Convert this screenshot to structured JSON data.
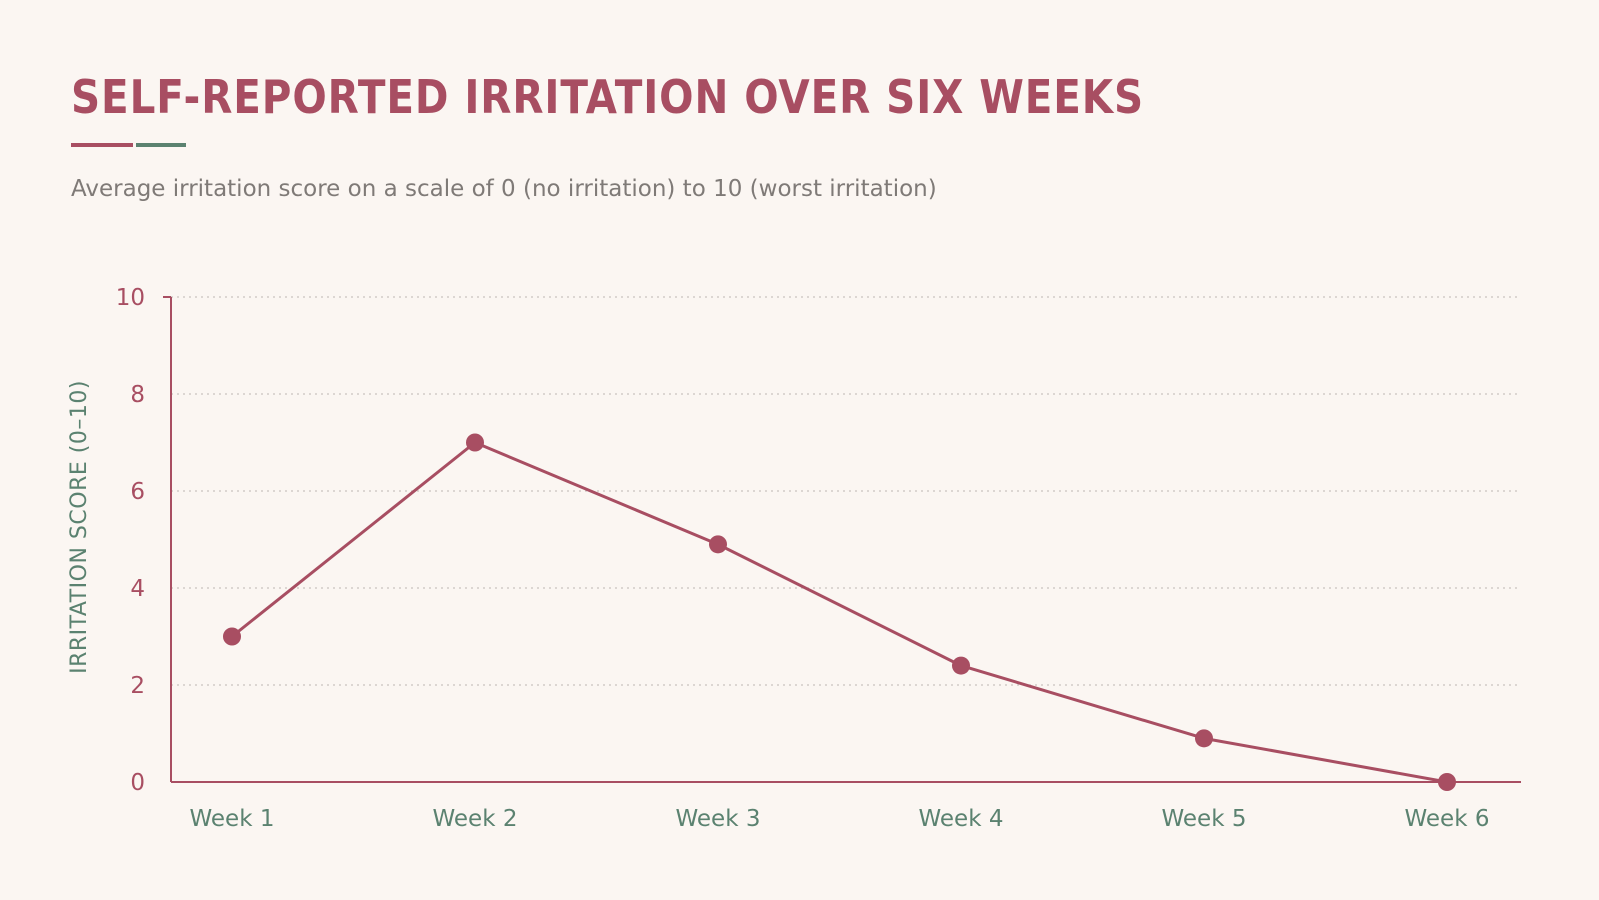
{
  "title": "SELF-REPORTED IRRITATION OVER SIX WEEKS",
  "subtitle": "Average irritation score on a scale of 0 (no irritation) to 10 (worst irritation)",
  "colors": {
    "line": "#a84e62",
    "axis": "#a84e62",
    "xticks": "#5b8270",
    "ylabel": "#5b8270",
    "grid": "#c9c4c0",
    "background": "#fbf6f2",
    "accent_red": "#a84e62",
    "accent_green": "#5b8270"
  },
  "chart_data": {
    "type": "line",
    "title": "SELF-REPORTED IRRITATION OVER SIX WEEKS",
    "subtitle": "Average irritation score on a scale of 0 (no irritation) to 10 (worst irritation)",
    "xlabel": "",
    "ylabel": "IRRITATION SCORE (0–10)",
    "categories": [
      "Week 1",
      "Week 2",
      "Week 3",
      "Week 4",
      "Week 5",
      "Week 6"
    ],
    "values": [
      3.0,
      7.0,
      4.9,
      2.4,
      0.9,
      0.0
    ],
    "ylim": [
      0,
      10
    ],
    "yticks": [
      "0",
      "2",
      "4",
      "6",
      "8",
      "10"
    ],
    "grid": "horizontal dotted",
    "legend": "none"
  }
}
